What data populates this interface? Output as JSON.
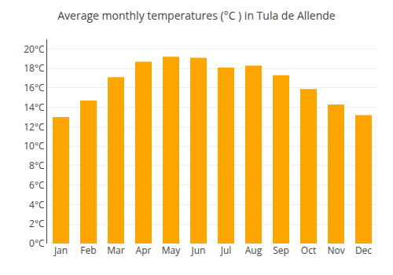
{
  "chart_data": {
    "type": "bar",
    "title": "Average monthly temperatures (°C ) in Tula de Allende",
    "categories": [
      "Jan",
      "Feb",
      "Mar",
      "Apr",
      "May",
      "Jun",
      "Jul",
      "Aug",
      "Sep",
      "Oct",
      "Nov",
      "Dec"
    ],
    "values": [
      13.0,
      14.7,
      17.1,
      18.7,
      19.2,
      19.1,
      18.1,
      18.3,
      17.3,
      15.9,
      14.3,
      13.2
    ],
    "color": "#FFA500",
    "ylim": [
      0,
      21
    ],
    "yticks": [
      {
        "value": 0,
        "label": "0°C"
      },
      {
        "value": 2,
        "label": "2°C"
      },
      {
        "value": 4,
        "label": "4°C"
      },
      {
        "value": 6,
        "label": "6°C"
      },
      {
        "value": 8,
        "label": "8°C"
      },
      {
        "value": 10,
        "label": "10°C"
      },
      {
        "value": 12,
        "label": "12°C"
      },
      {
        "value": 14,
        "label": "14°C"
      },
      {
        "value": 16,
        "label": "16°C"
      },
      {
        "value": 18,
        "label": "18°C"
      },
      {
        "value": 20,
        "label": "20°C"
      }
    ],
    "grid": true
  }
}
